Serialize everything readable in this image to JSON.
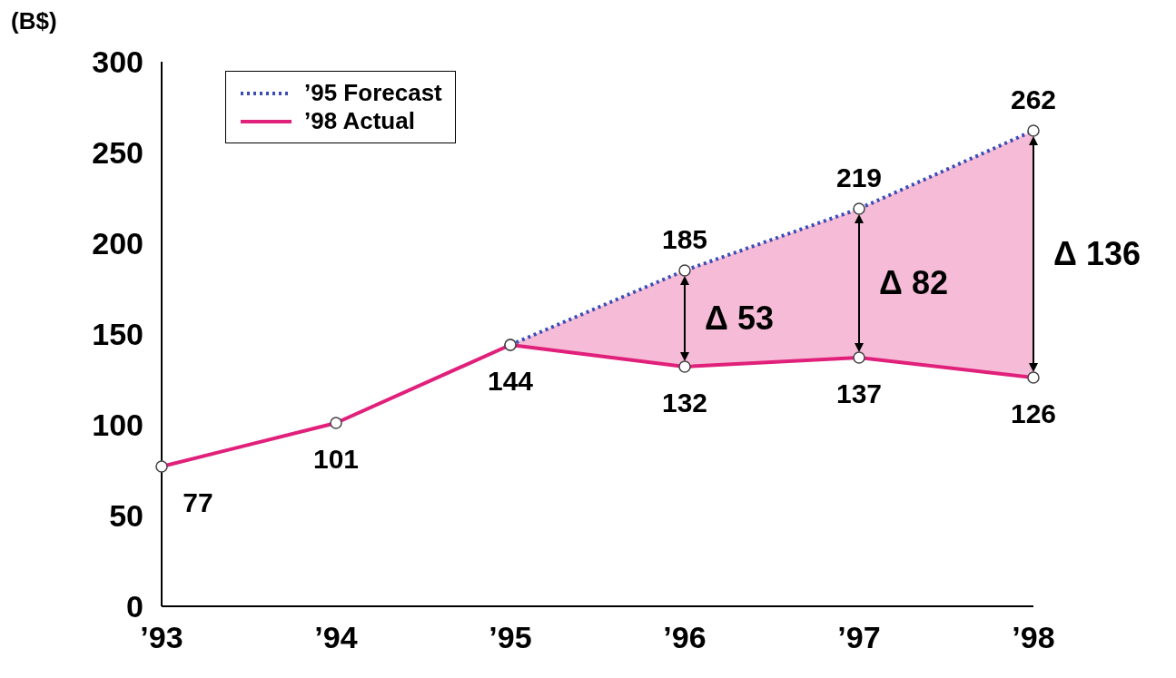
{
  "chart_data": {
    "type": "line",
    "categories": [
      "’93",
      "’94",
      "’95",
      "’96",
      "’97",
      "’98"
    ],
    "series": [
      {
        "name": "’95 Forecast",
        "color": "#3a4db5",
        "line_style": "dotted",
        "values": [
          null,
          null,
          144,
          185,
          219,
          262
        ],
        "value_labels": [
          null,
          null,
          null,
          "185",
          "219",
          "262"
        ],
        "lower": [
          null,
          null,
          144,
          132,
          137,
          126
        ],
        "upper": [
          null,
          null,
          144,
          185,
          219,
          262
        ]
      },
      {
        "name": "’98 Actual",
        "color": "#e0207a",
        "line_style": "solid",
        "values": [
          77,
          101,
          144,
          132,
          137,
          126
        ],
        "value_labels": [
          "77",
          "101",
          "144",
          "132",
          "137",
          "126"
        ]
      }
    ],
    "ylim": [
      0,
      300
    ],
    "yticks": [
      0,
      50,
      100,
      150,
      200,
      250,
      300
    ],
    "grid": false,
    "legend": "top left",
    "marker": "circle",
    "annotations": [
      "(B$)",
      "Δ 53",
      "Δ 82",
      "Δ 136"
    ]
  }
}
